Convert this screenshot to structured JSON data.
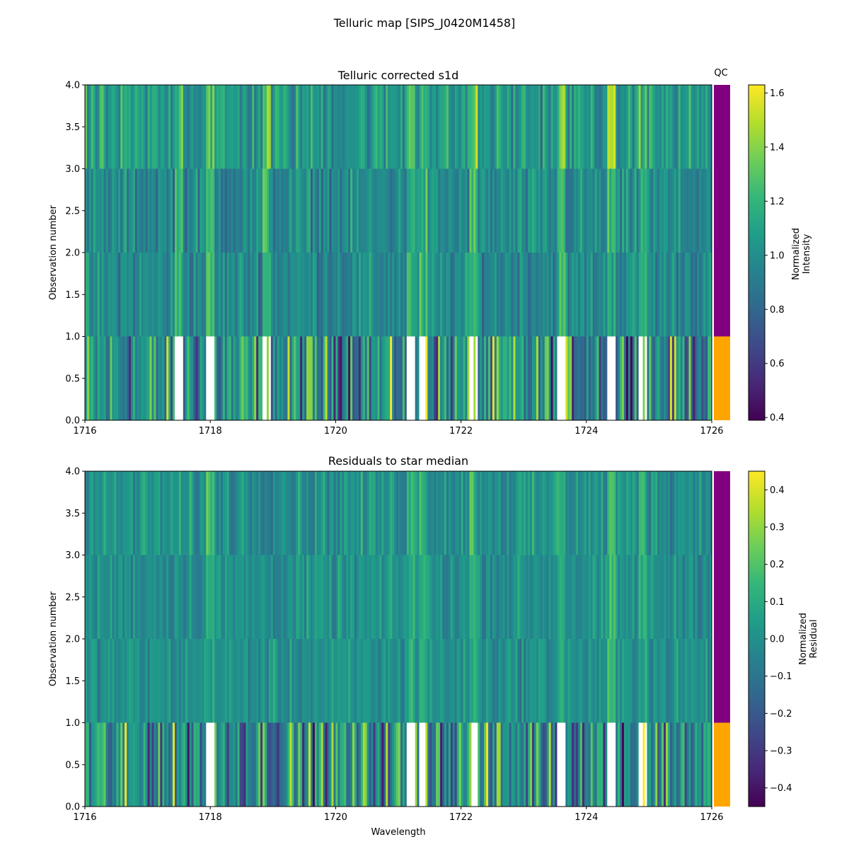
{
  "figure_title": "Telluric map [SIPS_J0420M1458]",
  "qc_label": "QC",
  "colors": {
    "qc_pass": "#800080",
    "qc_fail": "#FFA500"
  },
  "chart_data": [
    {
      "type": "heatmap",
      "title": "Telluric corrected s1d",
      "xlabel": "",
      "ylabel": "Observation number",
      "xlim": [
        1716,
        1726
      ],
      "ylim": [
        0,
        4
      ],
      "x_ticks": [
        "1716",
        "1718",
        "1720",
        "1722",
        "1724",
        "1726"
      ],
      "y_ticks": [
        "0.0",
        "0.5",
        "1.0",
        "1.5",
        "2.0",
        "2.5",
        "3.0",
        "3.5",
        "4.0"
      ],
      "colormap": "viridis",
      "colorbar": {
        "label_line1": "Normalized",
        "label_line2": "Intensity",
        "min": 0.39,
        "max": 1.63,
        "ticks": [
          "0.4",
          "0.6",
          "0.8",
          "1.0",
          "1.2",
          "1.4",
          "1.6"
        ]
      },
      "rows": [
        {
          "observation": 0,
          "qc": "fail",
          "mean": 1.0,
          "spread": 0.42
        },
        {
          "observation": 1,
          "qc": "pass",
          "mean": 0.98,
          "spread": 0.16
        },
        {
          "observation": 2,
          "qc": "pass",
          "mean": 0.97,
          "spread": 0.17
        },
        {
          "observation": 3,
          "qc": "pass",
          "mean": 1.05,
          "spread": 0.2
        }
      ],
      "highlight_wavelengths": [
        1717.5,
        1718.0,
        1718.9,
        1721.2,
        1721.4,
        1722.2,
        1723.6,
        1724.4,
        1724.9
      ]
    },
    {
      "type": "heatmap",
      "title": "Residuals to star median",
      "xlabel": "Wavelength",
      "ylabel": "Observation number",
      "xlim": [
        1716,
        1726
      ],
      "ylim": [
        0,
        4
      ],
      "x_ticks": [
        "1716",
        "1718",
        "1720",
        "1722",
        "1724",
        "1726"
      ],
      "y_ticks": [
        "0.0",
        "0.5",
        "1.0",
        "1.5",
        "2.0",
        "2.5",
        "3.0",
        "3.5",
        "4.0"
      ],
      "colormap": "viridis",
      "colorbar": {
        "label_line1": "Normalized",
        "label_line2": "Residual",
        "min": -0.45,
        "max": 0.45,
        "ticks": [
          "−0.4",
          "−0.3",
          "−0.2",
          "−0.1",
          "0.0",
          "0.1",
          "0.2",
          "0.3",
          "0.4"
        ]
      },
      "rows": [
        {
          "observation": 0,
          "qc": "fail",
          "mean": 0.0,
          "spread": 0.3
        },
        {
          "observation": 1,
          "qc": "pass",
          "mean": 0.0,
          "spread": 0.09
        },
        {
          "observation": 2,
          "qc": "pass",
          "mean": 0.0,
          "spread": 0.09
        },
        {
          "observation": 3,
          "qc": "pass",
          "mean": 0.01,
          "spread": 0.11
        }
      ],
      "highlight_wavelengths": [
        1718.0,
        1721.2,
        1721.4,
        1722.2,
        1723.6,
        1724.4,
        1724.9
      ]
    }
  ]
}
